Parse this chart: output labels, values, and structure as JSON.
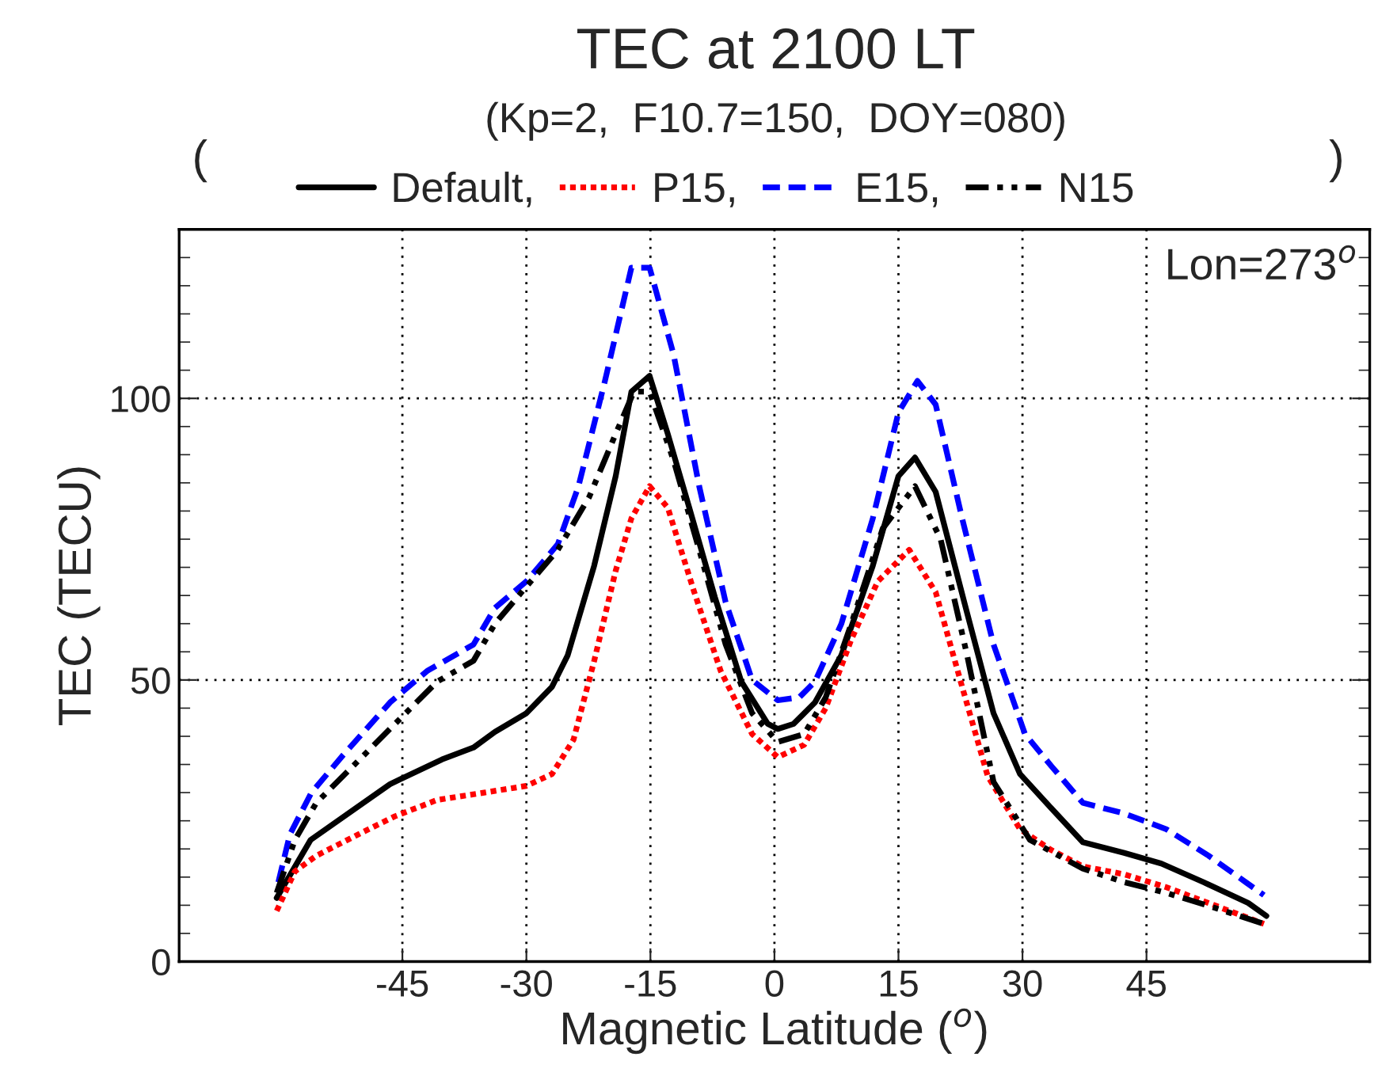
{
  "chart_data": {
    "type": "line",
    "title": "TEC at 2100 LT",
    "subtitle": "(Kp=2,  F10.7=150,  DOY=080)",
    "xlabel": "Magnetic Latitude ($^{o}$)",
    "ylabel": "TEC (TECU)",
    "annotations": [
      "Lon=273$^{o}$",
      "(",
      ")"
    ],
    "xlim": [
      -72,
      72
    ],
    "ylim": [
      0,
      130
    ],
    "xticks": [
      {
        "value": -45,
        "label": "-45"
      },
      {
        "value": -30,
        "label": "-30"
      },
      {
        "value": -15,
        "label": "-15"
      },
      0,
      15,
      30,
      45
    ],
    "yticks": [
      0,
      50,
      100
    ],
    "grid": true,
    "legend": "top",
    "series": [
      {
        "name": "Default,",
        "color": "#000000",
        "line_style": "solid",
        "x": [
          -60.2,
          -56.1,
          -46.5,
          -40.2,
          -36.4,
          -33.8,
          -30,
          -26.9,
          -25,
          -21.8,
          -19.2,
          -17.3,
          -15.1,
          -12.9,
          -10.3,
          -7.2,
          -4,
          -0.8,
          0.4,
          2.3,
          4.9,
          8.1,
          11.9,
          15,
          17,
          19.5,
          23.3,
          26.5,
          29.7,
          33.5,
          37.3,
          42.3,
          46.8,
          51.9,
          57.3,
          59.5
        ],
        "values": [
          11.3,
          21.6,
          31.5,
          35.9,
          38,
          40.8,
          44.1,
          48.8,
          54.4,
          70.3,
          86.2,
          101.2,
          104,
          93.7,
          80.6,
          64.7,
          49.7,
          42.2,
          41.3,
          42.2,
          46,
          54.4,
          70.3,
          86.2,
          89.5,
          83.4,
          61.9,
          44.1,
          33.3,
          27.2,
          21.2,
          19.3,
          17.4,
          14.1,
          10.4,
          8.1
        ]
      },
      {
        "name": "P15,",
        "color": "#ff0000",
        "line_style": "dotted",
        "x": [
          -60.2,
          -58,
          -55.4,
          -50.3,
          -45.9,
          -40.8,
          -35.1,
          -30,
          -26.9,
          -24.3,
          -21.8,
          -19.2,
          -17.3,
          -15.1,
          -12.9,
          -9.7,
          -6.5,
          -2.7,
          0.4,
          3.6,
          6.2,
          9.3,
          12.5,
          16.3,
          19.5,
          22.7,
          25.8,
          29.7,
          33.5,
          37.3,
          42.3,
          47.4,
          52.5,
          59.2
        ],
        "values": [
          9,
          16,
          18.8,
          22.6,
          25.8,
          28.7,
          30,
          31.2,
          33.3,
          39.4,
          53.4,
          69.4,
          78.7,
          84.4,
          80.6,
          65.6,
          51.6,
          40.4,
          36.3,
          38.5,
          45,
          57.2,
          67.5,
          73.1,
          65.6,
          48.8,
          32.9,
          23.5,
          19.8,
          16.9,
          15.5,
          13.2,
          10.4,
          6.7
        ]
      },
      {
        "name": "E15,",
        "color": "#0000ff",
        "line_style": "dashed",
        "x": [
          -60,
          -58.6,
          -56,
          -52.2,
          -46.5,
          -42,
          -36.4,
          -33.8,
          -30,
          -26.2,
          -23.7,
          -20.5,
          -17.3,
          -15.1,
          -12.2,
          -9.1,
          -5.9,
          -2.7,
          0.4,
          3,
          4.9,
          8.1,
          11.9,
          15,
          17.3,
          19.5,
          22.7,
          26.5,
          30.3,
          33.5,
          37.3,
          42.3,
          47.4,
          52.5,
          57,
          59.2
        ],
        "values": [
          14.1,
          22.6,
          30,
          36.6,
          46,
          51.6,
          56.3,
          62.8,
          67.5,
          74.1,
          84.4,
          103.1,
          123.2,
          123.2,
          107.8,
          84.4,
          63.8,
          50,
          46.4,
          46.9,
          49.7,
          60,
          78.7,
          97.5,
          103.1,
          98.9,
          78.7,
          56.3,
          40.4,
          34.7,
          28.2,
          26.3,
          23.5,
          18.8,
          14.1,
          11.8
        ]
      },
      {
        "name": "N15",
        "color": "#000000",
        "line_style": "dashdot",
        "x": [
          -60.2,
          -58,
          -55.4,
          -50.3,
          -45.9,
          -40.8,
          -36.4,
          -33.8,
          -30,
          -26.2,
          -22.4,
          -19.2,
          -17,
          -15.1,
          -12.2,
          -9.1,
          -5.9,
          -2.7,
          0.4,
          3.6,
          6.2,
          9.3,
          13.1,
          17,
          20.1,
          23.3,
          26.5,
          30.9,
          37.3,
          42.3,
          47.4,
          52.5,
          59.2
        ],
        "values": [
          12.2,
          21.6,
          28.2,
          35.7,
          42.2,
          49.7,
          53.4,
          60,
          66.6,
          73.1,
          82.5,
          93.7,
          101.2,
          101.2,
          89,
          73.1,
          56.3,
          44.1,
          39,
          40.4,
          46.9,
          60,
          76.9,
          84.4,
          75,
          54.4,
          31.9,
          21.6,
          16.5,
          14.1,
          12.2,
          9.9,
          6.7
        ]
      }
    ]
  }
}
